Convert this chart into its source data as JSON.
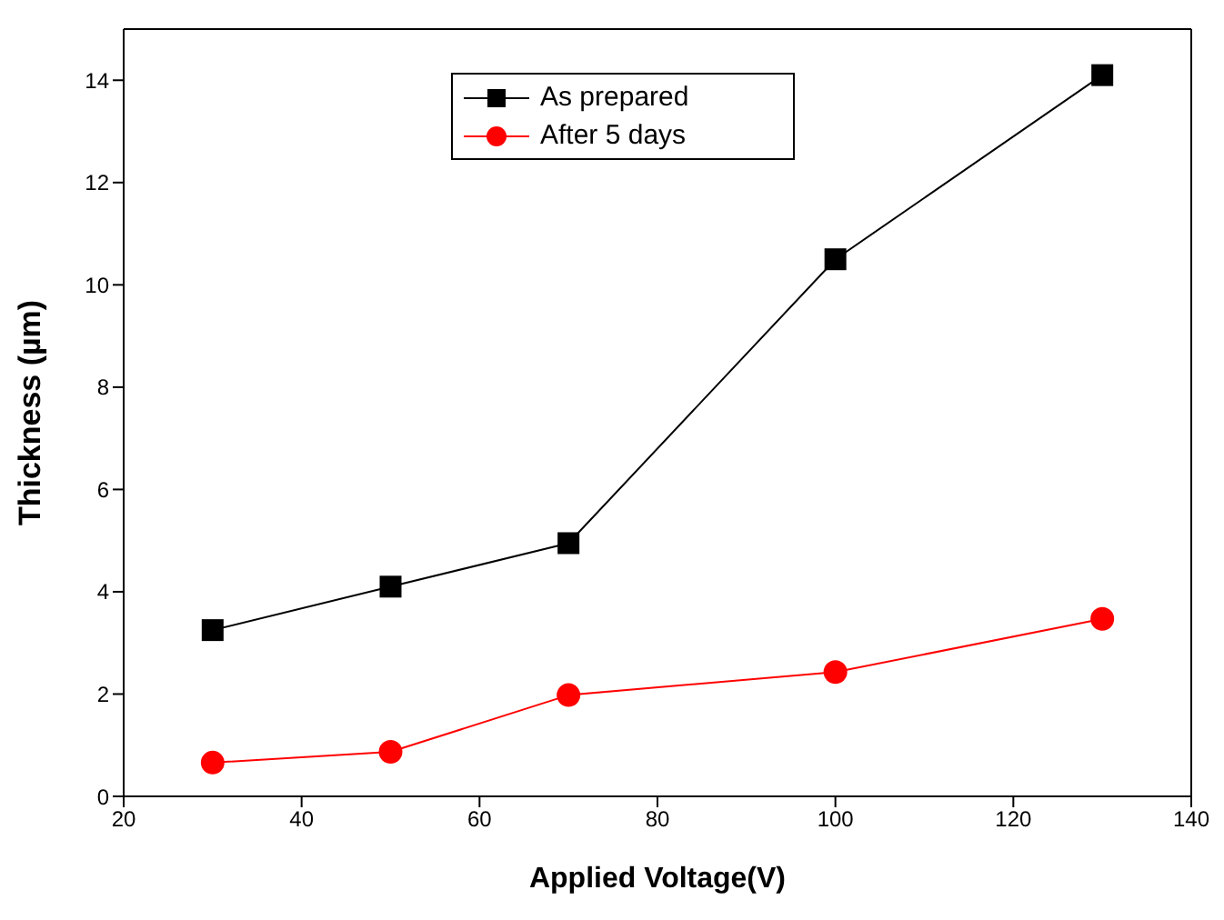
{
  "chart_data": {
    "type": "line",
    "xlabel": "Applied Voltage(V)",
    "ylabel": "Thickness (µm)",
    "x": [
      30,
      50,
      70,
      100,
      130
    ],
    "series": [
      {
        "name": "As prepared",
        "color": "#000000",
        "marker": "square",
        "values": [
          3.25,
          4.1,
          4.95,
          10.5,
          14.1
        ]
      },
      {
        "name": "After 5 days",
        "color": "#ff0000",
        "marker": "circle",
        "values": [
          0.66,
          0.87,
          1.98,
          2.43,
          3.47
        ]
      }
    ],
    "xlim": [
      20,
      140
    ],
    "xticks": [
      20,
      40,
      60,
      80,
      100,
      120,
      140
    ],
    "ylim": [
      0,
      15
    ],
    "yticks": [
      0,
      2,
      4,
      6,
      8,
      10,
      12,
      14
    ],
    "grid": false,
    "legend": "top",
    "line_style": "solid"
  }
}
